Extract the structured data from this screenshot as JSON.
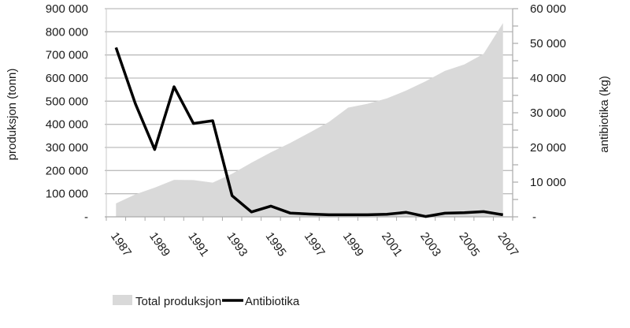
{
  "chart_data": {
    "type": "area+line",
    "x": [
      1987,
      1988,
      1989,
      1990,
      1991,
      1992,
      1993,
      1994,
      1995,
      1996,
      1997,
      1998,
      1999,
      2000,
      2001,
      2002,
      2003,
      2004,
      2005,
      2006,
      2007
    ],
    "x_tick_labels": [
      "1987",
      "1989",
      "1991",
      "1993",
      "1995",
      "1997",
      "1999",
      "2001",
      "2003",
      "2005",
      "2007"
    ],
    "series": [
      {
        "name": "Total produksjon",
        "type": "area",
        "axis": "left",
        "color": "#d9d9d9",
        "values": [
          58000,
          97000,
          126000,
          160000,
          159000,
          148000,
          186000,
          234000,
          279000,
          319000,
          364000,
          410000,
          472000,
          489000,
          512000,
          546000,
          586000,
          631000,
          659000,
          705000,
          838000
        ]
      },
      {
        "name": "Antibiotika",
        "type": "line",
        "axis": "right",
        "color": "#000000",
        "values": [
          48800,
          32600,
          19400,
          37500,
          26900,
          27700,
          6100,
          1400,
          3100,
          1100,
          800,
          600,
          600,
          600,
          750,
          1300,
          100,
          1050,
          1200,
          1500,
          600
        ]
      }
    ],
    "left_axis": {
      "label": "produksjon (tonn)",
      "range": [
        0,
        900000
      ],
      "tick_labels": [
        "-",
        "100 000",
        "200 000",
        "300 000",
        "400 000",
        "500 000",
        "600 000",
        "700 000",
        "800 000",
        "900 000"
      ]
    },
    "right_axis": {
      "label": "antibiotika (kg)",
      "range": [
        0,
        60000
      ],
      "tick_labels": [
        "-",
        "10 000",
        "20 000",
        "30 000",
        "40 000",
        "50 000",
        "60 000"
      ]
    },
    "grid": true,
    "legend_position": "bottom"
  }
}
